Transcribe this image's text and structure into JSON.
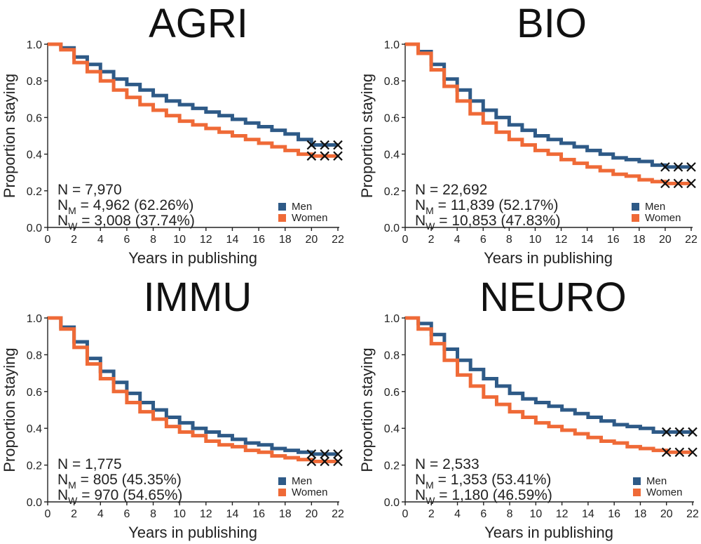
{
  "colors": {
    "men": "#2E5A87",
    "women": "#EF6A37",
    "censor": "#111111",
    "axis": "#222222"
  },
  "chart_data": [
    {
      "type": "line",
      "step": true,
      "title": "AGRI",
      "xlabel": "Years in publishing",
      "ylabel": "Proportion staying",
      "xlim": [
        0,
        22
      ],
      "ylim": [
        0,
        1
      ],
      "xticks": [
        "0",
        "2",
        "4",
        "6",
        "8",
        "10",
        "12",
        "14",
        "16",
        "18",
        "20",
        "22"
      ],
      "yticks": [
        "0.0",
        "0.2",
        "0.4",
        "0.6",
        "0.8",
        "1.0"
      ],
      "annotation": {
        "n_label": "N",
        "n": "7,970",
        "nm_label": "N",
        "nm_sub": "M",
        "nm": "4,962 (62.26%)",
        "nw_label": "N",
        "nw_sub": "W",
        "nw": "3,008 (37.74%)"
      },
      "legend": [
        "Men",
        "Women"
      ],
      "censor_x": [
        20,
        21,
        22
      ],
      "series": [
        {
          "name": "Men",
          "x": [
            0,
            1,
            2,
            3,
            4,
            5,
            6,
            7,
            8,
            9,
            10,
            11,
            12,
            13,
            14,
            15,
            16,
            17,
            18,
            19,
            20,
            21,
            22
          ],
          "values": [
            1.0,
            0.98,
            0.93,
            0.89,
            0.85,
            0.81,
            0.78,
            0.75,
            0.72,
            0.69,
            0.67,
            0.65,
            0.63,
            0.61,
            0.59,
            0.57,
            0.55,
            0.53,
            0.51,
            0.48,
            0.45,
            0.45,
            0.45
          ]
        },
        {
          "name": "Women",
          "x": [
            0,
            1,
            2,
            3,
            4,
            5,
            6,
            7,
            8,
            9,
            10,
            11,
            12,
            13,
            14,
            15,
            16,
            17,
            18,
            19,
            20,
            21,
            22
          ],
          "values": [
            1.0,
            0.97,
            0.9,
            0.85,
            0.8,
            0.75,
            0.71,
            0.67,
            0.64,
            0.61,
            0.58,
            0.56,
            0.54,
            0.52,
            0.5,
            0.48,
            0.46,
            0.44,
            0.42,
            0.4,
            0.39,
            0.39,
            0.39
          ]
        }
      ]
    },
    {
      "type": "line",
      "step": true,
      "title": "BIO",
      "xlabel": "Years in publishing",
      "ylabel": "Proportion staying",
      "xlim": [
        0,
        22
      ],
      "ylim": [
        0,
        1
      ],
      "xticks": [
        "0",
        "2",
        "4",
        "6",
        "8",
        "10",
        "12",
        "14",
        "16",
        "18",
        "20",
        "22"
      ],
      "yticks": [
        "0.0",
        "0.2",
        "0.4",
        "0.6",
        "0.8",
        "1.0"
      ],
      "annotation": {
        "n_label": "N",
        "n": "22,692",
        "nm_label": "N",
        "nm_sub": "M",
        "nm": "11,839 (52.17%)",
        "nw_label": "N",
        "nw_sub": "W",
        "nw": "10,853 (47.83%)"
      },
      "legend": [
        "Men",
        "Women"
      ],
      "censor_x": [
        20,
        21,
        22
      ],
      "series": [
        {
          "name": "Men",
          "x": [
            0,
            1,
            2,
            3,
            4,
            5,
            6,
            7,
            8,
            9,
            10,
            11,
            12,
            13,
            14,
            15,
            16,
            17,
            18,
            19,
            20,
            21,
            22
          ],
          "values": [
            1.0,
            0.96,
            0.89,
            0.81,
            0.75,
            0.69,
            0.64,
            0.6,
            0.56,
            0.53,
            0.5,
            0.48,
            0.46,
            0.44,
            0.42,
            0.4,
            0.38,
            0.37,
            0.36,
            0.34,
            0.33,
            0.33,
            0.33
          ]
        },
        {
          "name": "Women",
          "x": [
            0,
            1,
            2,
            3,
            4,
            5,
            6,
            7,
            8,
            9,
            10,
            11,
            12,
            13,
            14,
            15,
            16,
            17,
            18,
            19,
            20,
            21,
            22
          ],
          "values": [
            1.0,
            0.95,
            0.86,
            0.77,
            0.69,
            0.62,
            0.57,
            0.52,
            0.48,
            0.45,
            0.42,
            0.4,
            0.37,
            0.35,
            0.33,
            0.31,
            0.29,
            0.28,
            0.26,
            0.25,
            0.24,
            0.24,
            0.24
          ]
        }
      ]
    },
    {
      "type": "line",
      "step": true,
      "title": "IMMU",
      "xlabel": "Years in publishing",
      "ylabel": "Proportion staying",
      "xlim": [
        0,
        22
      ],
      "ylim": [
        0,
        1
      ],
      "xticks": [
        "0",
        "2",
        "4",
        "6",
        "8",
        "10",
        "12",
        "14",
        "16",
        "18",
        "20",
        "22"
      ],
      "yticks": [
        "0.0",
        "0.2",
        "0.4",
        "0.6",
        "0.8",
        "1.0"
      ],
      "annotation": {
        "n_label": "N",
        "n": "1,775",
        "nm_label": "N",
        "nm_sub": "M",
        "nm": "805 (45.35%)",
        "nw_label": "N",
        "nw_sub": "W",
        "nw": "970 (54.65%)"
      },
      "legend": [
        "Men",
        "Women"
      ],
      "censor_x": [
        20,
        21,
        22
      ],
      "series": [
        {
          "name": "Men",
          "x": [
            0,
            1,
            2,
            3,
            4,
            5,
            6,
            7,
            8,
            9,
            10,
            11,
            12,
            13,
            14,
            15,
            16,
            17,
            18,
            19,
            20,
            21,
            22
          ],
          "values": [
            1.0,
            0.95,
            0.87,
            0.78,
            0.71,
            0.65,
            0.59,
            0.54,
            0.5,
            0.46,
            0.43,
            0.4,
            0.38,
            0.36,
            0.34,
            0.32,
            0.31,
            0.29,
            0.28,
            0.27,
            0.26,
            0.26,
            0.26
          ]
        },
        {
          "name": "Women",
          "x": [
            0,
            1,
            2,
            3,
            4,
            5,
            6,
            7,
            8,
            9,
            10,
            11,
            12,
            13,
            14,
            15,
            16,
            17,
            18,
            19,
            20,
            21,
            22
          ],
          "values": [
            1.0,
            0.94,
            0.84,
            0.75,
            0.67,
            0.6,
            0.54,
            0.49,
            0.45,
            0.41,
            0.38,
            0.36,
            0.33,
            0.31,
            0.3,
            0.28,
            0.27,
            0.25,
            0.24,
            0.23,
            0.22,
            0.22,
            0.22
          ]
        }
      ]
    },
    {
      "type": "line",
      "step": true,
      "title": "NEURO",
      "xlabel": "Years in publishing",
      "ylabel": "Proportion staying",
      "xlim": [
        0,
        22
      ],
      "ylim": [
        0,
        1
      ],
      "xticks": [
        "0",
        "2",
        "4",
        "6",
        "8",
        "10",
        "12",
        "14",
        "16",
        "18",
        "20",
        "22"
      ],
      "yticks": [
        "0.0",
        "0.2",
        "0.4",
        "0.6",
        "0.8",
        "1.0"
      ],
      "annotation": {
        "n_label": "N",
        "n": "2,533",
        "nm_label": "N",
        "nm_sub": "M",
        "nm": "1,353 (53.41%)",
        "nw_label": "N",
        "nw_sub": "W",
        "nw": "1,180 (46.59%)"
      },
      "legend": [
        "Men",
        "Women"
      ],
      "censor_x": [
        20,
        21,
        22
      ],
      "series": [
        {
          "name": "Men",
          "x": [
            0,
            1,
            2,
            3,
            4,
            5,
            6,
            7,
            8,
            9,
            10,
            11,
            12,
            13,
            14,
            15,
            16,
            17,
            18,
            19,
            20,
            21,
            22
          ],
          "values": [
            1.0,
            0.97,
            0.91,
            0.83,
            0.77,
            0.72,
            0.67,
            0.63,
            0.59,
            0.56,
            0.54,
            0.52,
            0.5,
            0.48,
            0.46,
            0.44,
            0.42,
            0.41,
            0.4,
            0.38,
            0.38,
            0.38,
            0.38
          ]
        },
        {
          "name": "Women",
          "x": [
            0,
            1,
            2,
            3,
            4,
            5,
            6,
            7,
            8,
            9,
            10,
            11,
            12,
            13,
            14,
            15,
            16,
            17,
            18,
            19,
            20,
            21,
            22
          ],
          "values": [
            1.0,
            0.94,
            0.86,
            0.77,
            0.69,
            0.63,
            0.57,
            0.53,
            0.49,
            0.46,
            0.43,
            0.41,
            0.39,
            0.37,
            0.35,
            0.33,
            0.32,
            0.3,
            0.29,
            0.28,
            0.27,
            0.27,
            0.27
          ]
        }
      ]
    }
  ]
}
